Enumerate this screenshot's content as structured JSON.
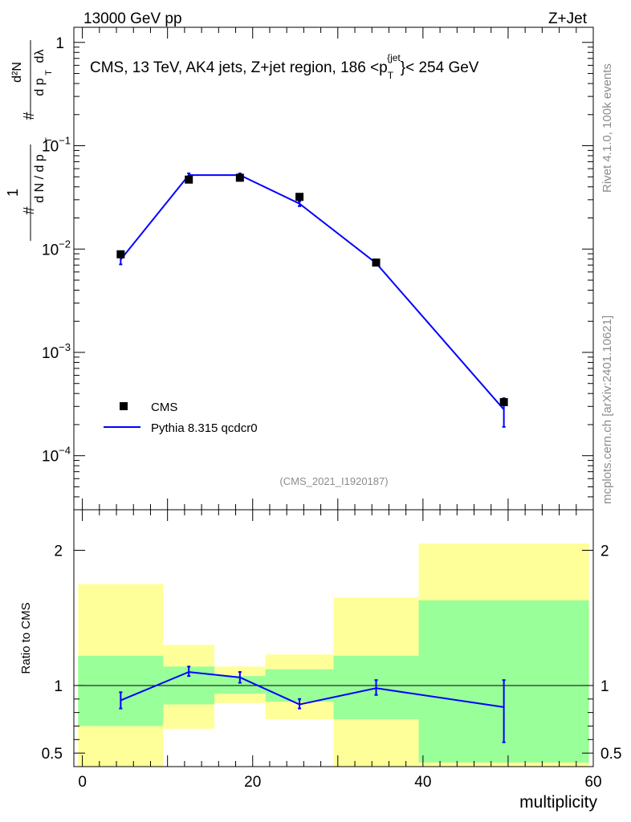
{
  "header": {
    "left": "13000 GeV pp",
    "right": "Z+Jet"
  },
  "side_labels": {
    "rivet": "Rivet 4.1.0,  100k events",
    "mcplots": "mcplots.cern.ch [arXiv:2401.10621]"
  },
  "chart_data": [
    {
      "type": "scatter",
      "title": "CMS, 13 TeV, AK4 jets, Z+jet region, 186 <p_T^{jet}< 254 GeV",
      "title_parts": {
        "pre": "CMS, 13 TeV, AK4 jets, Z+jet region, 186 <p",
        "sub": "T",
        "sup": "{jet",
        "post": "}< 254 GeV"
      },
      "ylabel": "1/dN/dpT · d²N/dpT dλ",
      "yscale": "log",
      "ylim": [
        3e-05,
        1.4
      ],
      "xlim": [
        -1,
        60
      ],
      "watermark": "(CMS_2021_I1920187)",
      "y_ticks": [
        {
          "value": 0.0001,
          "base": "10",
          "exp": "−4"
        },
        {
          "value": 0.001,
          "base": "10",
          "exp": "−3"
        },
        {
          "value": 0.01,
          "base": "10",
          "exp": "−2"
        },
        {
          "value": 0.1,
          "base": "10",
          "exp": "−1"
        },
        {
          "value": 1,
          "base": "1",
          "exp": ""
        }
      ],
      "legend": [
        "CMS",
        "Pythia 8.315 qcdcr0"
      ],
      "legend_position": "bottom-left",
      "series": [
        {
          "name": "CMS",
          "marker": "square",
          "points": [
            {
              "x": 4.5,
              "y": 0.0089
            },
            {
              "x": 12.5,
              "y": 0.047
            },
            {
              "x": 18.5,
              "y": 0.049
            },
            {
              "x": 25.5,
              "y": 0.032
            },
            {
              "x": 34.5,
              "y": 0.0074
            },
            {
              "x": 49.5,
              "y": 0.00033
            }
          ]
        },
        {
          "name": "Pythia 8.315 qcdcr0",
          "color": "#0000ff",
          "points": [
            {
              "x": 4.5,
              "y": 0.0079,
              "ylo": 0.0071,
              "yhi": 0.0087
            },
            {
              "x": 12.5,
              "y": 0.052,
              "ylo": 0.05,
              "yhi": 0.054
            },
            {
              "x": 18.5,
              "y": 0.052,
              "ylo": 0.05,
              "yhi": 0.054
            },
            {
              "x": 25.5,
              "y": 0.0275,
              "ylo": 0.026,
              "yhi": 0.029
            },
            {
              "x": 34.5,
              "y": 0.0073,
              "ylo": 0.007,
              "yhi": 0.0076
            },
            {
              "x": 49.5,
              "y": 0.00028,
              "ylo": 0.00019,
              "yhi": 0.00036
            }
          ]
        }
      ]
    },
    {
      "type": "line",
      "ylabel": "Ratio to CMS",
      "xlabel": "multiplicity",
      "ylim": [
        0.4,
        2.3
      ],
      "xlim": [
        -1,
        60
      ],
      "x_ticks": [
        0,
        20,
        40,
        60
      ],
      "y_ticks": [
        {
          "value": 0.5,
          "label": "0.5"
        },
        {
          "value": 1,
          "label": "1"
        },
        {
          "value": 2,
          "label": "2"
        }
      ],
      "bands": [
        {
          "x0": -0.5,
          "x1": 9.5,
          "g_lo": 0.7,
          "g_hi": 1.22,
          "y_lo": 0.4,
          "y_hi": 1.75
        },
        {
          "x0": 9.5,
          "x1": 15.5,
          "g_lo": 0.86,
          "g_hi": 1.14,
          "y_lo": 0.68,
          "y_hi": 1.3
        },
        {
          "x0": 15.5,
          "x1": 21.5,
          "g_lo": 0.94,
          "g_hi": 1.07,
          "y_lo": 0.87,
          "y_hi": 1.14
        },
        {
          "x0": 21.5,
          "x1": 29.5,
          "g_lo": 0.88,
          "g_hi": 1.12,
          "y_lo": 0.75,
          "y_hi": 1.23
        },
        {
          "x0": 29.5,
          "x1": 39.5,
          "g_lo": 0.75,
          "g_hi": 1.22,
          "y_lo": 0.4,
          "y_hi": 1.65
        },
        {
          "x0": 39.5,
          "x1": 59.5,
          "g_lo": 0.43,
          "g_hi": 1.63,
          "y_lo": 0.4,
          "y_hi": 2.05
        }
      ],
      "series": [
        {
          "name": "Pythia 8.315 qcdcr0",
          "color": "#0000ff",
          "points": [
            {
              "x": 4.5,
              "y": 0.89,
              "ylo": 0.83,
              "yhi": 0.95
            },
            {
              "x": 12.5,
              "y": 1.1,
              "ylo": 1.07,
              "yhi": 1.14
            },
            {
              "x": 18.5,
              "y": 1.06,
              "ylo": 1.02,
              "yhi": 1.1
            },
            {
              "x": 25.5,
              "y": 0.86,
              "ylo": 0.83,
              "yhi": 0.9
            },
            {
              "x": 34.5,
              "y": 0.98,
              "ylo": 0.93,
              "yhi": 1.04
            },
            {
              "x": 49.5,
              "y": 0.84,
              "ylo": 0.58,
              "yhi": 1.04
            }
          ]
        }
      ],
      "band_colors": {
        "green": "#99ff99",
        "yellow": "#ffff99"
      }
    }
  ]
}
